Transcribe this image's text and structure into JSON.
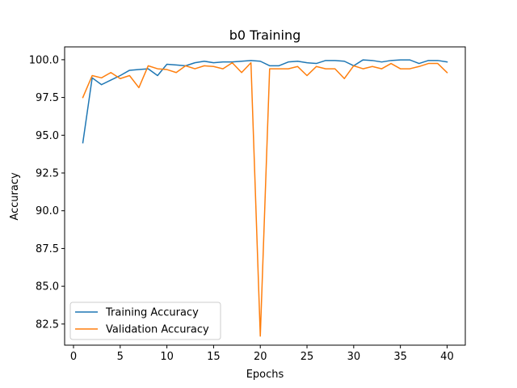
{
  "chart_data": {
    "type": "line",
    "title": "b0 Training",
    "xlabel": "Epochs",
    "ylabel": "Accuracy",
    "xlim": [
      -0.95,
      41.95
    ],
    "ylim": [
      81.1,
      100.85
    ],
    "xticks": [
      0,
      5,
      10,
      15,
      20,
      25,
      30,
      35,
      40
    ],
    "yticks": [
      82.5,
      85.0,
      87.5,
      90.0,
      92.5,
      95.0,
      97.5,
      100.0
    ],
    "ytick_labels": [
      "82.5",
      "85.0",
      "87.5",
      "90.0",
      "92.5",
      "95.0",
      "97.5",
      "100.0"
    ],
    "legend_position": "lower left",
    "grid": false,
    "x": [
      1,
      2,
      3,
      4,
      5,
      6,
      7,
      8,
      9,
      10,
      11,
      12,
      13,
      14,
      15,
      16,
      17,
      18,
      19,
      20,
      21,
      22,
      23,
      24,
      25,
      26,
      27,
      28,
      29,
      30,
      31,
      32,
      33,
      34,
      35,
      36,
      37,
      38,
      39,
      40
    ],
    "series": [
      {
        "name": "Training Accuracy",
        "color": "#1f77b4",
        "values": [
          94.5,
          98.8,
          98.35,
          98.65,
          98.95,
          99.3,
          99.35,
          99.4,
          98.95,
          99.7,
          99.65,
          99.6,
          99.8,
          99.9,
          99.8,
          99.85,
          99.85,
          99.9,
          99.95,
          99.9,
          99.6,
          99.6,
          99.85,
          99.9,
          99.8,
          99.75,
          99.95,
          99.95,
          99.9,
          99.6,
          99.99,
          99.95,
          99.85,
          99.95,
          99.99,
          99.99,
          99.75,
          99.95,
          99.95,
          99.85
        ]
      },
      {
        "name": "Validation Accuracy",
        "color": "#ff7f0e",
        "values": [
          97.5,
          98.95,
          98.8,
          99.15,
          98.75,
          98.95,
          98.15,
          99.6,
          99.4,
          99.35,
          99.15,
          99.6,
          99.4,
          99.6,
          99.55,
          99.4,
          99.8,
          99.15,
          99.8,
          81.7,
          99.4,
          99.4,
          99.4,
          99.55,
          98.95,
          99.55,
          99.4,
          99.4,
          98.75,
          99.6,
          99.4,
          99.55,
          99.4,
          99.75,
          99.4,
          99.4,
          99.55,
          99.75,
          99.75,
          99.15
        ]
      }
    ]
  }
}
